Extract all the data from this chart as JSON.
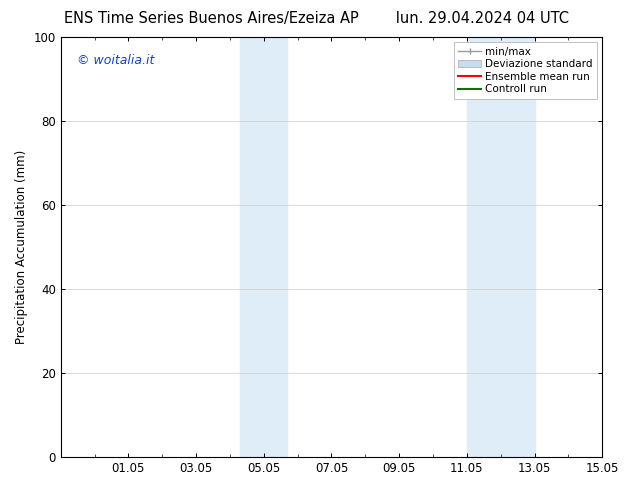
{
  "title_left": "ENS Time Series Buenos Aires/Ezeiza AP",
  "title_right": "lun. 29.04.2024 04 UTC",
  "ylabel": "Precipitation Accumulation (mm)",
  "watermark": "© woitalia.it",
  "watermark_color": "#1144cc",
  "ylim": [
    0,
    100
  ],
  "xlim_start": 29.0,
  "xlim_end": 45.0,
  "xtick_labels": [
    "01.05",
    "03.05",
    "05.05",
    "07.05",
    "09.05",
    "11.05",
    "13.05",
    "15.05"
  ],
  "xtick_positions": [
    31,
    33,
    35,
    37,
    39,
    41,
    43,
    45
  ],
  "ytick_labels": [
    "0",
    "20",
    "40",
    "60",
    "80",
    "100"
  ],
  "ytick_positions": [
    0,
    20,
    40,
    60,
    80,
    100
  ],
  "shaded_bands": [
    {
      "xmin": 34.3,
      "xmax": 35.7,
      "color": "#deedf8"
    },
    {
      "xmin": 41.0,
      "xmax": 43.0,
      "color": "#deedf8"
    }
  ],
  "bg_color": "#ffffff",
  "grid_color": "#cccccc",
  "title_fontsize": 10.5,
  "tick_fontsize": 8.5,
  "ylabel_fontsize": 8.5,
  "watermark_fontsize": 9
}
